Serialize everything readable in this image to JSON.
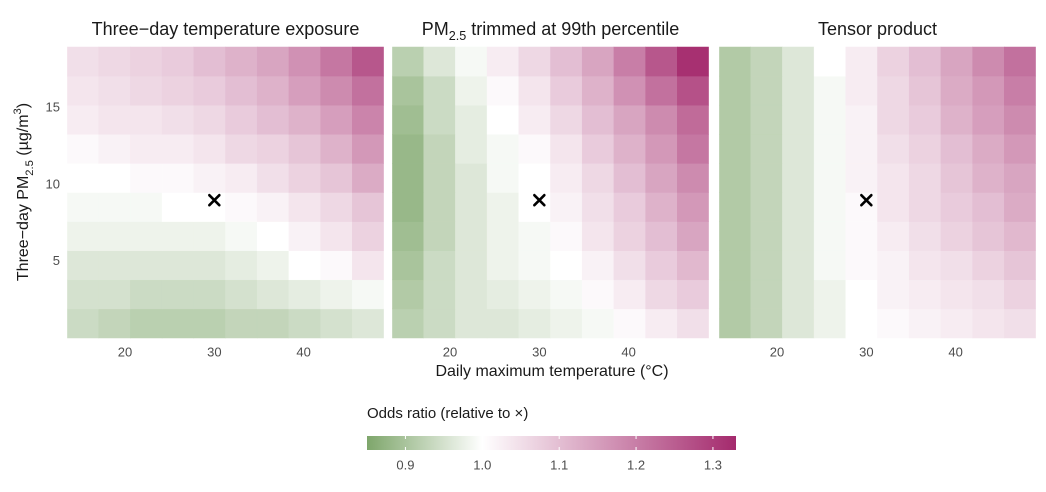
{
  "figure": {
    "xlabel": "Daily maximum temperature (°C)",
    "ylabel": [
      {
        "text": "Three−day PM"
      },
      {
        "text": "2.5",
        "script": "sub"
      },
      {
        "text": " (µg/m"
      },
      {
        "text": "3",
        "script": "super"
      },
      {
        "text": ")"
      }
    ],
    "colorbar": {
      "title": "Odds ratio (relative to ×)",
      "lim": [
        0.85,
        1.33
      ],
      "midpoint": 1,
      "ticks": [
        0.9,
        {
          "value": 1,
          "label": "1.0"
        },
        1.1,
        1.2,
        1.3
      ],
      "colors": [
        "#7ea66b",
        "#ffffff",
        "#a42a6d"
      ]
    }
  },
  "chart_data": [
    {
      "type": "heatmap",
      "title": "Three−day temperature exposure",
      "x": [
        15.3,
        18.8,
        22.4,
        25.9,
        29.5,
        33.0,
        36.6,
        40.1,
        43.7,
        47.2
      ],
      "y": [
        0.95,
        2.85,
        4.75,
        6.65,
        8.55,
        10.45,
        12.35,
        14.25,
        16.15,
        18.05
      ],
      "xlim": [
        13.5,
        49
      ],
      "ylim": [
        0,
        19
      ],
      "xticks": [
        20,
        30,
        40
      ],
      "yticks": [
        5,
        10,
        15
      ],
      "reference": {
        "x": 30,
        "y": 9
      },
      "z": [
        [
          0.94,
          0.93,
          0.92,
          0.92,
          0.92,
          0.93,
          0.93,
          0.94,
          0.95,
          0.96
        ],
        [
          0.95,
          0.95,
          0.94,
          0.94,
          0.94,
          0.95,
          0.96,
          0.97,
          0.98,
          0.99
        ],
        [
          0.96,
          0.96,
          0.96,
          0.96,
          0.96,
          0.97,
          0.98,
          1.0,
          1.01,
          1.04
        ],
        [
          0.98,
          0.98,
          0.98,
          0.98,
          0.98,
          0.99,
          1.0,
          1.02,
          1.04,
          1.07
        ],
        [
          0.99,
          0.99,
          0.99,
          1.0,
          1.0,
          1.01,
          1.02,
          1.04,
          1.06,
          1.09
        ],
        [
          1.0,
          1.0,
          1.01,
          1.01,
          1.02,
          1.03,
          1.05,
          1.07,
          1.09,
          1.13
        ],
        [
          1.01,
          1.02,
          1.03,
          1.03,
          1.04,
          1.06,
          1.07,
          1.09,
          1.12,
          1.16
        ],
        [
          1.03,
          1.04,
          1.04,
          1.05,
          1.06,
          1.08,
          1.1,
          1.12,
          1.15,
          1.19
        ],
        [
          1.04,
          1.05,
          1.06,
          1.07,
          1.08,
          1.1,
          1.12,
          1.15,
          1.18,
          1.22
        ],
        [
          1.05,
          1.06,
          1.07,
          1.08,
          1.1,
          1.12,
          1.14,
          1.17,
          1.21,
          1.26
        ]
      ]
    },
    {
      "type": "heatmap",
      "title": [
        {
          "text": "PM"
        },
        {
          "text": "2.5",
          "script": "sub"
        },
        {
          "text": " trimmed at 99th percentile"
        }
      ],
      "x": [
        15.3,
        18.8,
        22.4,
        25.9,
        29.5,
        33.0,
        36.6,
        40.1,
        43.7,
        47.2
      ],
      "y": [
        0.95,
        2.85,
        4.75,
        6.65,
        8.55,
        10.45,
        12.35,
        14.25,
        16.15,
        18.05
      ],
      "xlim": [
        13.5,
        49
      ],
      "ylim": [
        0,
        19
      ],
      "xticks": [
        20,
        30,
        40
      ],
      "reference": {
        "x": 30,
        "y": 9
      },
      "z": [
        [
          0.92,
          0.94,
          0.96,
          0.96,
          0.97,
          0.98,
          0.99,
          1.01,
          1.03,
          1.05
        ],
        [
          0.91,
          0.94,
          0.96,
          0.97,
          0.98,
          0.99,
          1.01,
          1.03,
          1.06,
          1.08
        ],
        [
          0.9,
          0.94,
          0.96,
          0.98,
          0.99,
          1.0,
          1.02,
          1.05,
          1.08,
          1.11
        ],
        [
          0.89,
          0.93,
          0.96,
          0.98,
          0.99,
          1.01,
          1.04,
          1.07,
          1.1,
          1.14
        ],
        [
          0.88,
          0.93,
          0.96,
          0.98,
          1.0,
          1.02,
          1.05,
          1.08,
          1.12,
          1.16
        ],
        [
          0.88,
          0.93,
          0.96,
          0.99,
          1.0,
          1.03,
          1.06,
          1.1,
          1.14,
          1.18
        ],
        [
          0.88,
          0.93,
          0.97,
          0.99,
          1.01,
          1.04,
          1.08,
          1.12,
          1.16,
          1.21
        ],
        [
          0.89,
          0.94,
          0.97,
          1.0,
          1.03,
          1.06,
          1.1,
          1.14,
          1.18,
          1.23
        ],
        [
          0.9,
          0.94,
          0.98,
          1.01,
          1.04,
          1.08,
          1.12,
          1.17,
          1.22,
          1.27
        ],
        [
          0.92,
          0.96,
          0.99,
          1.03,
          1.06,
          1.1,
          1.14,
          1.2,
          1.26,
          1.32
        ]
      ]
    },
    {
      "type": "heatmap",
      "title": "Tensor product",
      "x": [
        15.3,
        18.8,
        22.4,
        25.9,
        29.5,
        33.0,
        36.6,
        40.1,
        43.7,
        47.2
      ],
      "y": [
        0.95,
        2.85,
        4.75,
        6.65,
        8.55,
        10.45,
        12.35,
        14.25,
        16.15,
        18.05
      ],
      "xlim": [
        13.5,
        49
      ],
      "ylim": [
        0,
        19
      ],
      "xticks": [
        20,
        30,
        40
      ],
      "reference": {
        "x": 30,
        "y": 9
      },
      "z": [
        [
          0.91,
          0.93,
          0.96,
          0.98,
          1.0,
          1.01,
          1.02,
          1.03,
          1.04,
          1.05
        ],
        [
          0.91,
          0.93,
          0.96,
          0.98,
          1.0,
          1.02,
          1.03,
          1.04,
          1.05,
          1.07
        ],
        [
          0.91,
          0.93,
          0.96,
          0.99,
          1.01,
          1.02,
          1.04,
          1.05,
          1.07,
          1.09
        ],
        [
          0.91,
          0.93,
          0.96,
          0.99,
          1.01,
          1.03,
          1.05,
          1.07,
          1.09,
          1.11
        ],
        [
          0.91,
          0.93,
          0.96,
          0.99,
          1.01,
          1.04,
          1.06,
          1.08,
          1.1,
          1.13
        ],
        [
          0.91,
          0.93,
          0.96,
          0.99,
          1.02,
          1.04,
          1.06,
          1.09,
          1.12,
          1.14
        ],
        [
          0.91,
          0.93,
          0.96,
          0.99,
          1.02,
          1.05,
          1.07,
          1.1,
          1.13,
          1.16
        ],
        [
          0.91,
          0.93,
          0.96,
          0.99,
          1.02,
          1.06,
          1.08,
          1.12,
          1.15,
          1.18
        ],
        [
          0.91,
          0.93,
          0.96,
          0.99,
          1.03,
          1.06,
          1.09,
          1.13,
          1.16,
          1.2
        ],
        [
          0.91,
          0.93,
          0.96,
          1.0,
          1.03,
          1.07,
          1.1,
          1.14,
          1.18,
          1.22
        ]
      ]
    }
  ]
}
